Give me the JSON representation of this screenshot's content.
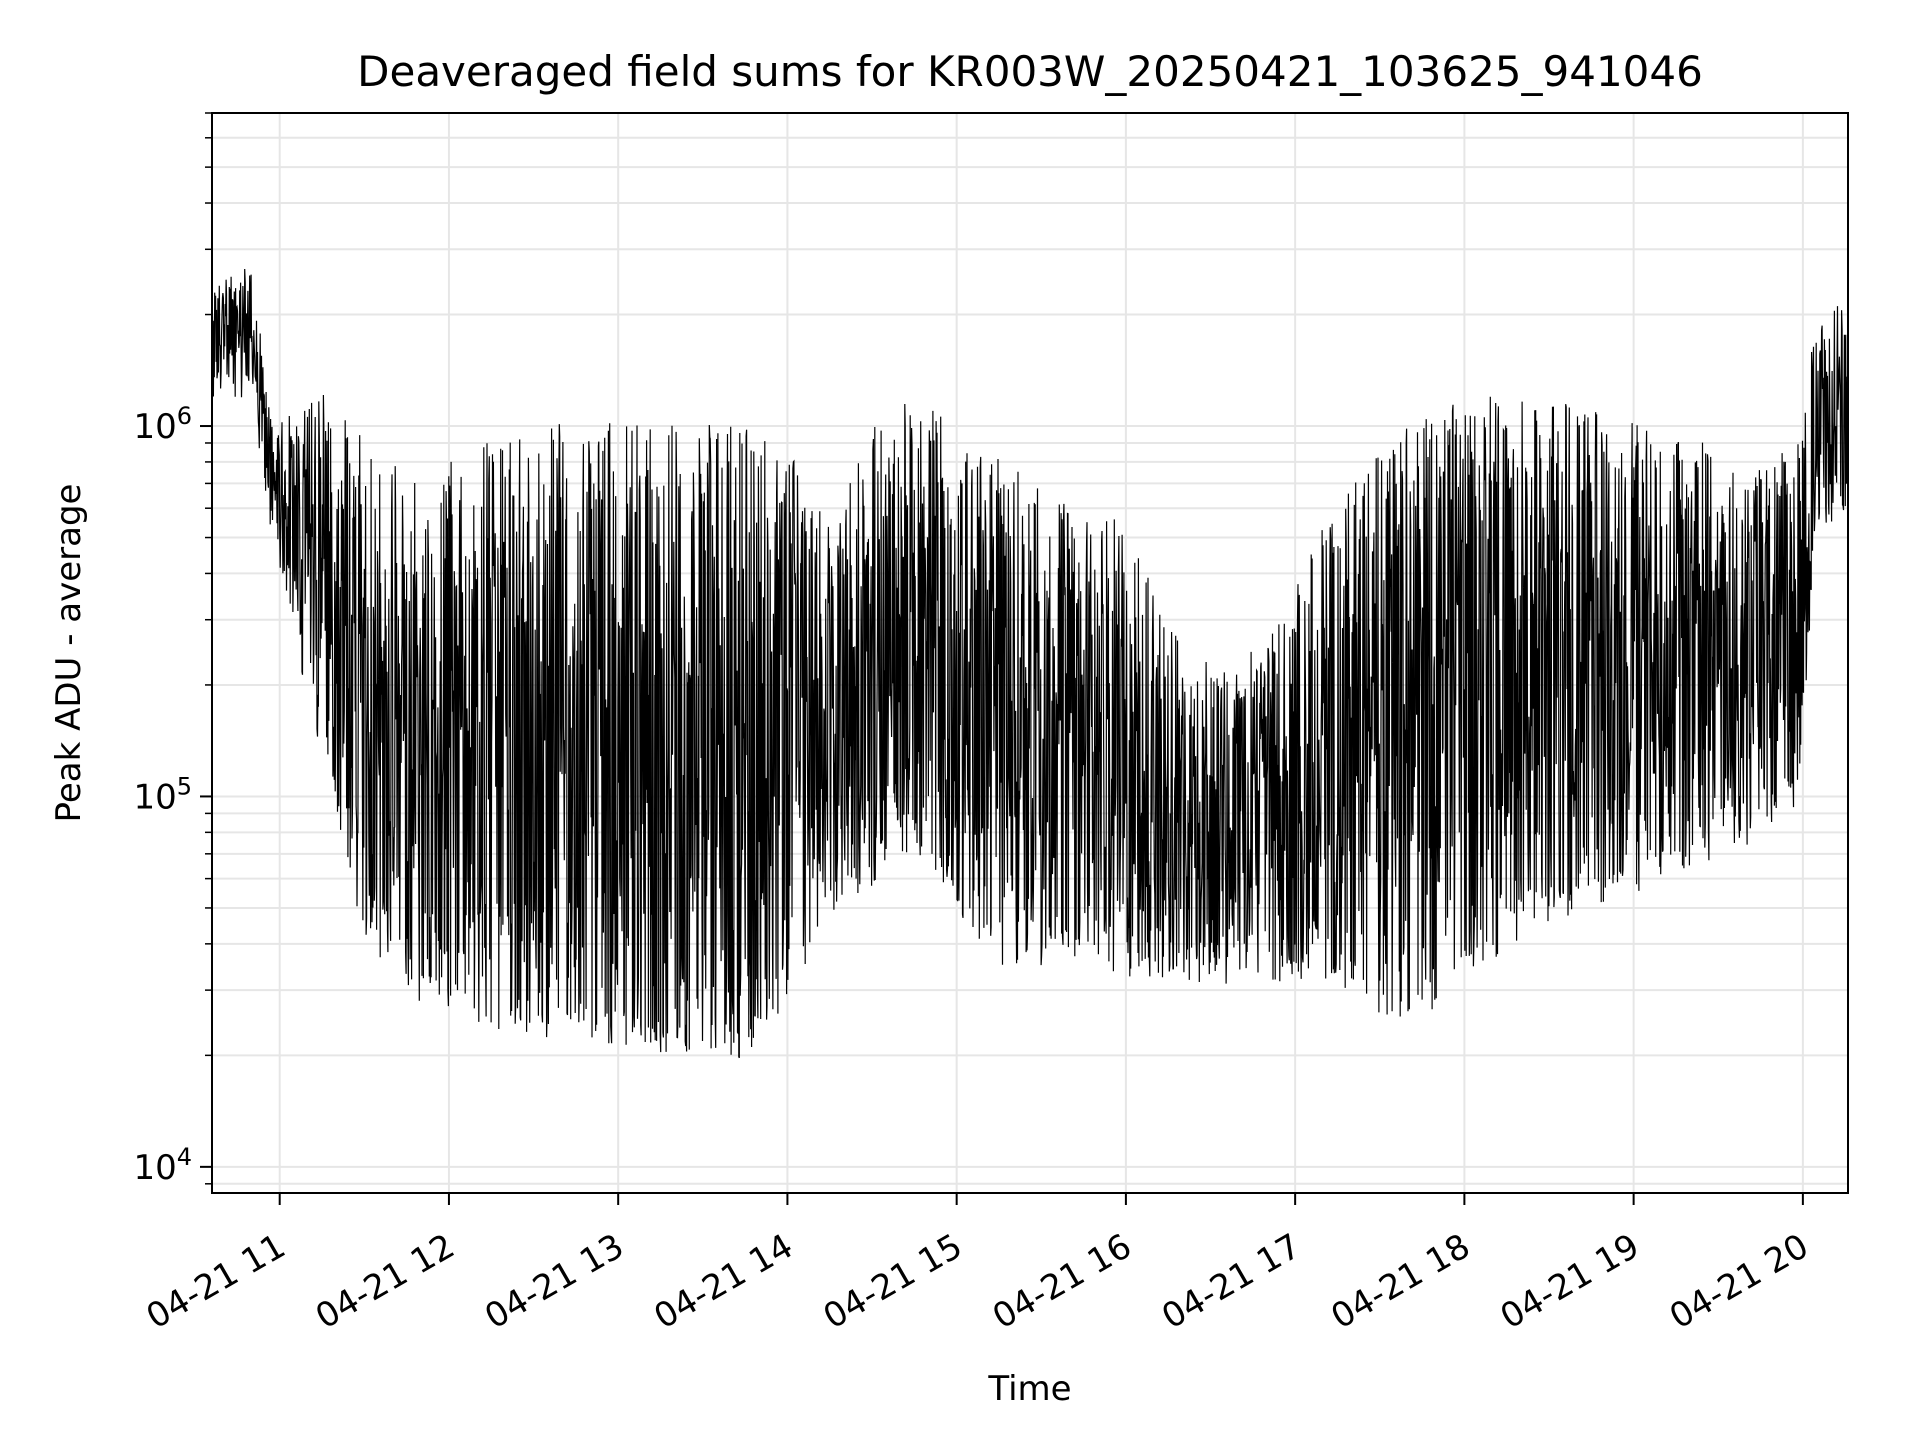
{
  "chart_data": {
    "type": "line",
    "title": "Deaveraged field sums for KR003W_20250421_103625_941046",
    "xlabel": "Time",
    "ylabel": "Peak ADU - average",
    "yscale": "log",
    "ylim": [
      8500,
      7000000
    ],
    "xlim": [
      "2025-04-21 10:36",
      "2025-04-21 20:16"
    ],
    "grid": true,
    "line_color": "#000000",
    "grid_color": "#e6e6e6",
    "x_ticks": [
      "04-21 11",
      "04-21 12",
      "04-21 13",
      "04-21 14",
      "04-21 15",
      "04-21 16",
      "04-21 17",
      "04-21 18",
      "04-21 19",
      "04-21 20"
    ],
    "y_ticks": [
      {
        "value": 10000,
        "base": "10",
        "exp": "4"
      },
      {
        "value": 100000,
        "base": "10",
        "exp": "5"
      },
      {
        "value": 1000000,
        "base": "10",
        "exp": "6"
      }
    ],
    "envelope": {
      "time": [
        "2025-04-21 10:36",
        "2025-04-21 10:50",
        "2025-04-21 10:58",
        "2025-04-21 11:10",
        "2025-04-21 11:30",
        "2025-04-21 11:50",
        "2025-04-21 12:20",
        "2025-04-21 12:50",
        "2025-04-21 13:20",
        "2025-04-21 13:45",
        "2025-04-21 14:00",
        "2025-04-21 14:15",
        "2025-04-21 14:30",
        "2025-04-21 14:45",
        "2025-04-21 15:00",
        "2025-04-21 15:20",
        "2025-04-21 15:40",
        "2025-04-21 16:00",
        "2025-04-21 16:20",
        "2025-04-21 16:40",
        "2025-04-21 17:00",
        "2025-04-21 17:20",
        "2025-04-21 17:40",
        "2025-04-21 18:00",
        "2025-04-21 18:30",
        "2025-04-21 19:00",
        "2025-04-21 19:20",
        "2025-04-21 19:40",
        "2025-04-21 19:58",
        "2025-04-21 20:05",
        "2025-04-21 20:16"
      ],
      "upper": [
        2500000,
        2500000,
        1000000,
        1200000,
        900000,
        700000,
        900000,
        950000,
        950000,
        900000,
        800000,
        500000,
        900000,
        1100000,
        900000,
        700000,
        600000,
        500000,
        250000,
        200000,
        350000,
        700000,
        1000000,
        1100000,
        1100000,
        1000000,
        900000,
        700000,
        900000,
        2000000,
        2000000
      ],
      "lower": [
        1300000,
        1300000,
        500000,
        200000,
        45000,
        30000,
        25000,
        24000,
        22000,
        20000,
        30000,
        50000,
        60000,
        80000,
        50000,
        35000,
        40000,
        35000,
        35000,
        33000,
        35000,
        30000,
        25000,
        35000,
        50000,
        60000,
        70000,
        80000,
        100000,
        600000,
        600000
      ]
    }
  }
}
